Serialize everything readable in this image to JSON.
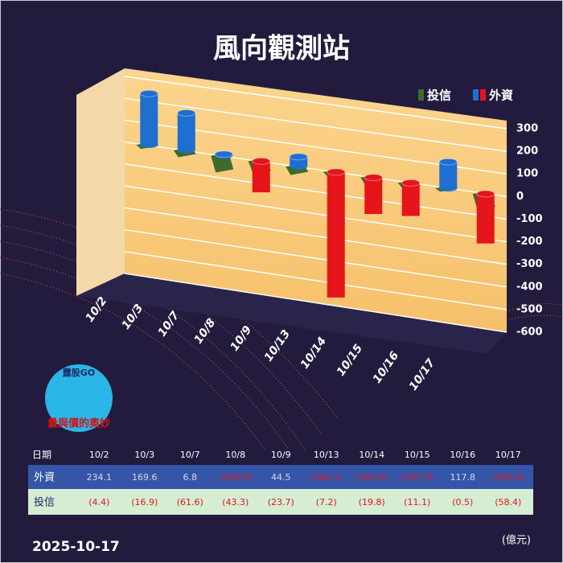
{
  "chart_data": {
    "type": "bar",
    "title": "風向觀測站",
    "categories": [
      "10/2",
      "10/3",
      "10/7",
      "10/8",
      "10/9",
      "10/13",
      "10/14",
      "10/15",
      "10/16",
      "10/17"
    ],
    "series": [
      {
        "name": "外資",
        "color": "#1e6fd0",
        "negative_color": "#e6141b",
        "values": [
          234.1,
          169.6,
          6.8,
          -140.9,
          44.5,
          -563.1,
          -163.5,
          -147.3,
          117.8,
          -220.0
        ],
        "value_labels": [
          "234.1",
          "169.6",
          "6.8",
          "(140.9)",
          "44.5",
          "(563.1)",
          "(163.5)",
          "(147.3)",
          "117.8",
          "(220.0)"
        ]
      },
      {
        "name": "投信",
        "color": "#3d6b2c",
        "values": [
          -4.4,
          -16.9,
          -61.6,
          -43.3,
          -23.7,
          -7.2,
          -19.8,
          -11.1,
          -0.5,
          -58.4
        ],
        "value_labels": [
          "(4.4)",
          "(16.9)",
          "(61.6)",
          "(43.3)",
          "(23.7)",
          "(7.2)",
          "(19.8)",
          "(11.1)",
          "(0.5)",
          "(58.4)"
        ]
      }
    ],
    "ylim": [
      -600,
      300
    ],
    "yticks": [
      300,
      200,
      100,
      0,
      -100,
      -200,
      -300,
      -400,
      -500,
      -600
    ],
    "grid": true
  },
  "table_header": "日期",
  "date": "2025-10-17",
  "unit": "(億元)",
  "logo": {
    "name": "露股GO",
    "slogan": "量與價的奧妙"
  }
}
